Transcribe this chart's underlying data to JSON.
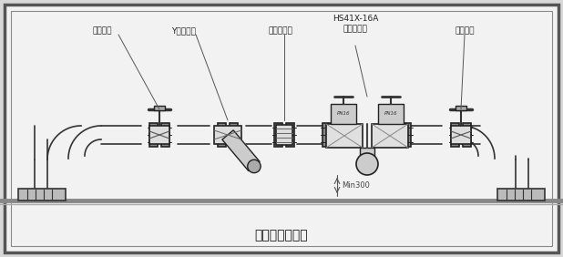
{
  "title": "（室外安装图）",
  "title_fontsize": 10,
  "bg_color": "#f8f8f8",
  "border_color": "#333333",
  "line_color": "#333333",
  "labels": {
    "inlet_valve": "进口闸阀",
    "y_filter": "Y型过滤器",
    "rubber_joint": "橡胶软接头",
    "main_valve_top": "HS41X-16A",
    "main_valve_bot": "防污隔断阀",
    "outlet_valve": "出口闸阀"
  },
  "dim_label": "Min300"
}
